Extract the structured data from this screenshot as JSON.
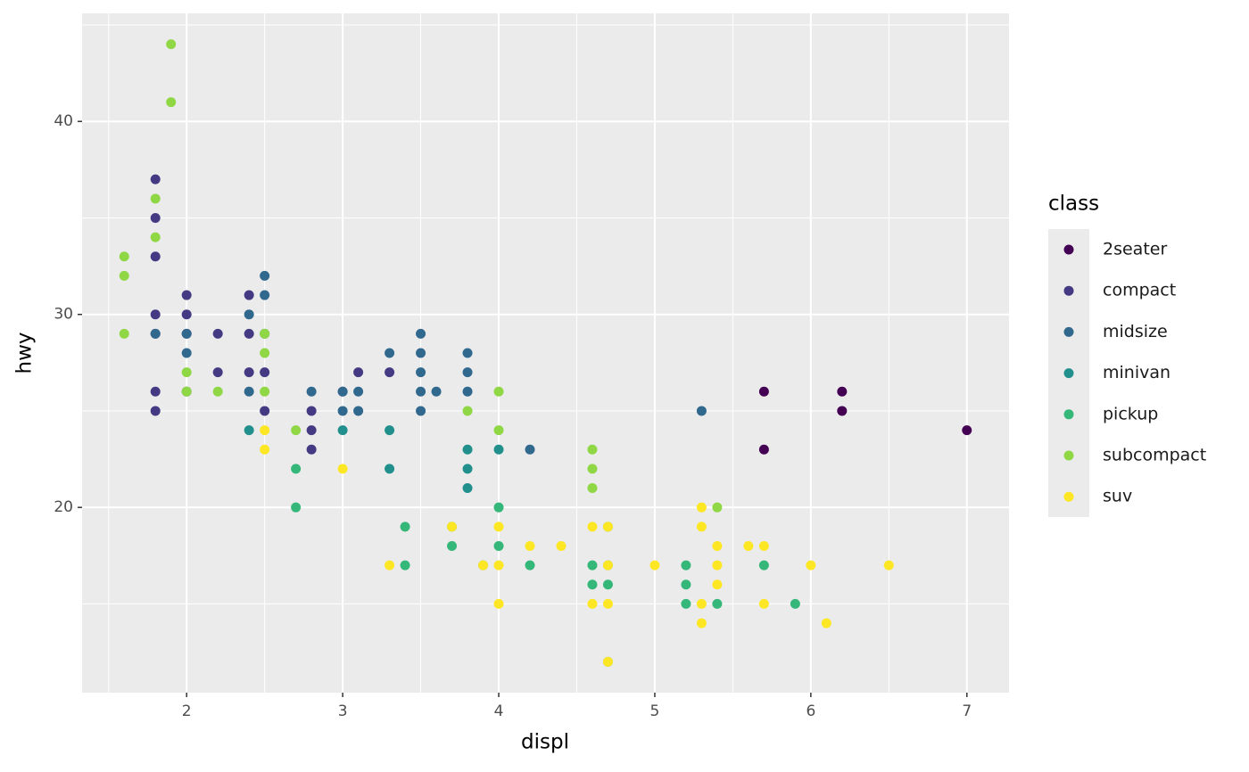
{
  "chart_data": {
    "type": "scatter",
    "x_label": "displ",
    "y_label": "hwy",
    "legend_title": "class",
    "legend_position": "right",
    "xlim": [
      1.33,
      7.27
    ],
    "ylim": [
      10.4,
      45.6
    ],
    "xticks": [
      2,
      3,
      4,
      5,
      6,
      7
    ],
    "yticks": [
      20,
      30,
      40
    ],
    "x_minor_grid": [
      1.5,
      2.5,
      3.5,
      4.5,
      5.5,
      6.5
    ],
    "y_minor_grid": [
      15,
      25,
      35,
      45
    ],
    "grid": true,
    "background": "#ebebeb",
    "series": [
      {
        "name": "2seater",
        "color": "#440154",
        "x": [
          5.7,
          5.7,
          6.2,
          6.2,
          7.0
        ],
        "values": [
          26,
          23,
          26,
          25,
          24
        ]
      },
      {
        "name": "compact",
        "color": "#443a83",
        "x": [
          1.8,
          1.8,
          1.8,
          1.8,
          1.8,
          1.8,
          1.8,
          2.0,
          2.0,
          2.0,
          2.0,
          2.2,
          2.2,
          2.4,
          2.4,
          2.4,
          2.5,
          2.5,
          2.8,
          2.8,
          2.8,
          3.0,
          3.1,
          3.3
        ],
        "values": [
          37,
          35,
          33,
          30,
          29,
          26,
          25,
          31,
          30,
          29,
          26,
          29,
          27,
          31,
          29,
          27,
          27,
          25,
          25,
          24,
          23,
          26,
          27,
          27
        ]
      },
      {
        "name": "midsize",
        "color": "#31688e",
        "x": [
          1.8,
          2.0,
          2.0,
          2.4,
          2.4,
          2.5,
          2.5,
          2.5,
          2.8,
          3.0,
          3.0,
          3.1,
          3.1,
          3.3,
          3.5,
          3.5,
          3.5,
          3.5,
          3.5,
          3.6,
          3.8,
          3.8,
          3.8,
          4.2,
          5.3
        ],
        "values": [
          29,
          29,
          28,
          30,
          26,
          32,
          31,
          29,
          26,
          26,
          25,
          26,
          25,
          28,
          29,
          28,
          27,
          26,
          25,
          26,
          28,
          27,
          26,
          23,
          25
        ]
      },
      {
        "name": "minivan",
        "color": "#21908c",
        "x": [
          2.4,
          3.0,
          3.3,
          3.3,
          3.8,
          3.8,
          3.8,
          4.0
        ],
        "values": [
          24,
          24,
          24,
          22,
          23,
          22,
          21,
          23
        ]
      },
      {
        "name": "pickup",
        "color": "#35b779",
        "x": [
          2.7,
          2.7,
          3.4,
          3.4,
          3.7,
          3.7,
          3.9,
          4.0,
          4.0,
          4.2,
          4.6,
          4.6,
          4.7,
          4.7,
          4.7,
          4.7,
          5.2,
          5.2,
          5.2,
          5.4,
          5.7,
          5.9
        ],
        "values": [
          22,
          20,
          19,
          17,
          19,
          18,
          17,
          20,
          18,
          17,
          17,
          16,
          19,
          17,
          16,
          12,
          17,
          16,
          15,
          15,
          17,
          15
        ]
      },
      {
        "name": "subcompact",
        "color": "#8fd744",
        "x": [
          1.6,
          1.6,
          1.6,
          1.8,
          1.8,
          1.9,
          1.9,
          2.0,
          2.0,
          2.2,
          2.5,
          2.5,
          2.5,
          2.7,
          3.8,
          4.0,
          4.0,
          4.6,
          4.6,
          4.6,
          5.4
        ],
        "values": [
          33,
          32,
          29,
          36,
          34,
          44,
          41,
          27,
          26,
          26,
          29,
          28,
          26,
          24,
          25,
          26,
          24,
          23,
          22,
          21,
          20
        ]
      },
      {
        "name": "suv",
        "color": "#fde725",
        "x": [
          2.5,
          2.5,
          3.0,
          3.3,
          3.7,
          3.9,
          4.0,
          4.0,
          4.0,
          4.2,
          4.4,
          4.6,
          4.6,
          4.7,
          4.7,
          4.7,
          4.7,
          5.0,
          5.3,
          5.3,
          5.3,
          5.3,
          5.4,
          5.4,
          5.4,
          5.6,
          5.7,
          5.7,
          6.0,
          6.1,
          6.5
        ],
        "values": [
          24,
          23,
          22,
          17,
          19,
          17,
          19,
          17,
          15,
          18,
          18,
          19,
          15,
          19,
          17,
          15,
          12,
          17,
          20,
          19,
          15,
          14,
          18,
          17,
          16,
          18,
          18,
          15,
          17,
          14,
          17
        ]
      }
    ]
  }
}
